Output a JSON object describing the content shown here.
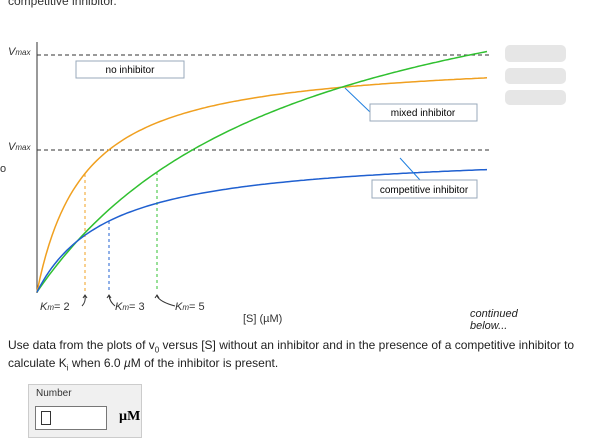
{
  "header": {
    "cut_text": "competitive inhibitor."
  },
  "plot": {
    "vmax_upper": {
      "v": "V",
      "sub": "max"
    },
    "vmax_lower": {
      "v": "V",
      "sub": "max"
    },
    "y_axis_cut": "o",
    "x_axis_label": "[S] (µM)",
    "curve_labels": [
      "no inhibitor",
      "mixed inhibitor",
      "competitive inhibitor"
    ],
    "km_labels": [
      {
        "k": "K",
        "sub": "m",
        "rest": "= 2"
      },
      {
        "k": "K",
        "sub": "m",
        "rest": "= 3"
      },
      {
        "k": "K",
        "sub": "m",
        "rest": "= 5"
      }
    ]
  },
  "continued": [
    "continued",
    "below..."
  ],
  "question": {
    "part1": "Use data from the plots of v",
    "sub1": "0",
    "part2": " versus [S] without an inhibitor and in the presence of a competitive inhibitor to",
    "part3": "calculate K",
    "sub2": "i",
    "part4": " when 6.0 ",
    "mu": "µ",
    "part5": "M of the inhibitor is present."
  },
  "answer": {
    "label": "Number",
    "unit": "µM"
  }
}
